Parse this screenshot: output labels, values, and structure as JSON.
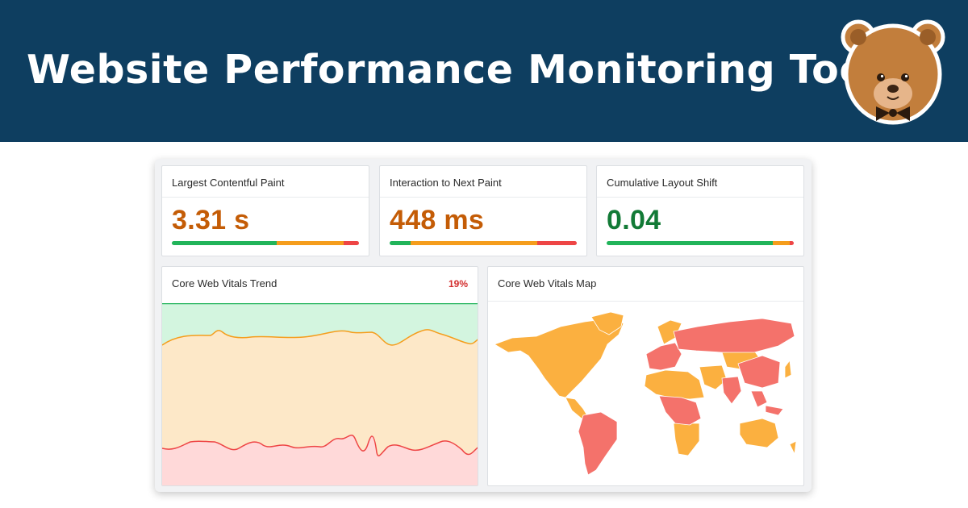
{
  "banner": {
    "title": "Website Performance Monitoring Tools",
    "background": "#0e3e60"
  },
  "metrics": [
    {
      "label": "Largest Contentful Paint",
      "value": "3.31 s",
      "value_color": "#c45c06",
      "distribution": {
        "good": 0.56,
        "needs_improvement": 0.36,
        "poor": 0.08
      }
    },
    {
      "label": "Interaction to Next Paint",
      "value": "448 ms",
      "value_color": "#c45c06",
      "distribution": {
        "good": 0.11,
        "needs_improvement": 0.68,
        "poor": 0.21
      }
    },
    {
      "label": "Cumulative Layout Shift",
      "value": "0.04",
      "value_color": "#127a36",
      "distribution": {
        "good": 0.89,
        "needs_improvement": 0.09,
        "poor": 0.02
      }
    }
  ],
  "colors": {
    "good": "#21b45a",
    "needs_improvement": "#f59d1c",
    "poor": "#ee4545"
  },
  "trend": {
    "title": "Core Web Vitals Trend",
    "badge": "19%",
    "badge_color": "#d32f2f"
  },
  "map": {
    "title": "Core Web Vitals Map",
    "needs_improvement_color": "#fbb040",
    "poor_color": "#f4726b"
  }
}
